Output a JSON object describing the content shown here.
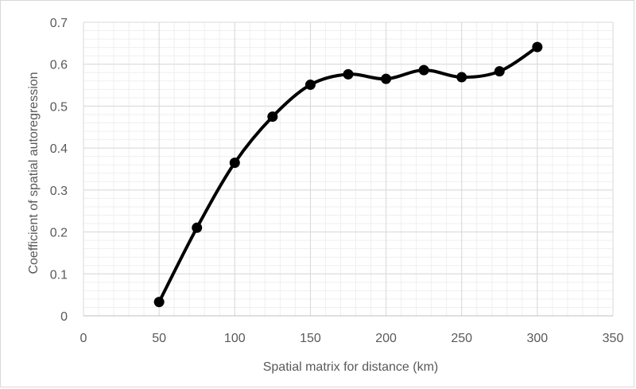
{
  "chart_data": {
    "type": "line",
    "title": "",
    "xlabel": "Spatial matrix for distance (km)",
    "ylabel": "Coefficient of spatial autoregression",
    "xlim": [
      0,
      350
    ],
    "ylim": [
      0,
      0.7
    ],
    "x_ticks": [
      0,
      50,
      100,
      150,
      200,
      250,
      300,
      350
    ],
    "y_ticks": [
      0,
      0.1,
      0.2,
      0.3,
      0.4,
      0.5,
      0.6,
      0.7
    ],
    "x_tick_labels": [
      "0",
      "50",
      "100",
      "150",
      "200",
      "250",
      "300",
      "350"
    ],
    "y_tick_labels": [
      "0",
      "0.1",
      "0.2",
      "0.3",
      "0.4",
      "0.5",
      "0.6",
      "0.7"
    ],
    "grid": true,
    "minor_grid": true,
    "legend": "none",
    "smooth": true,
    "series": [
      {
        "color": "#000000",
        "marker": "circle",
        "x": [
          50,
          75,
          100,
          125,
          150,
          175,
          200,
          225,
          250,
          275,
          300
        ],
        "y": [
          0.033,
          0.21,
          0.365,
          0.475,
          0.551,
          0.576,
          0.565,
          0.586,
          0.569,
          0.583,
          0.641
        ]
      }
    ],
    "colors": {
      "line": "#000000",
      "grid_major": "#d9d9d9",
      "grid_minor": "#efefef",
      "axis": "#bfbfbf",
      "text": "#595959"
    }
  }
}
